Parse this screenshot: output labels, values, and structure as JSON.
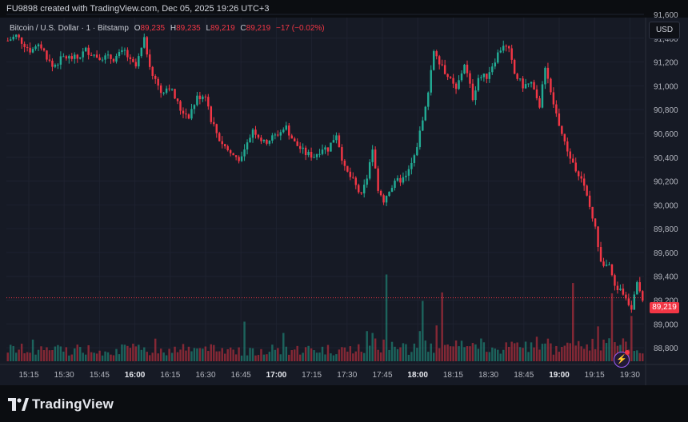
{
  "header": {
    "created_text": "FU9898 created with TradingView.com, Dec 05, 2025 19:26 UTC+3"
  },
  "legend": {
    "symbol": "Bitcoin / U.S. Dollar · 1 · Bitstamp",
    "o_label": "O",
    "o_value": "89,235",
    "h_label": "H",
    "h_value": "89,235",
    "l_label": "L",
    "l_value": "89,219",
    "c_label": "C",
    "c_value": "89,219",
    "change": "−17 (−0.02%)"
  },
  "currency_button": "USD",
  "last_price_label": "89,219",
  "footer": {
    "brand": "TradingView"
  },
  "colors": {
    "up": "#22ab94",
    "down": "#f23645",
    "background": "#161a25",
    "grid": "#1e2230"
  },
  "icons": {
    "alert": "lightning-icon"
  },
  "chart_data": {
    "type": "candlestick",
    "title": "Bitcoin / U.S. Dollar · 1 · Bitstamp",
    "ylabel": "USD",
    "ylim": [
      88700,
      91600
    ],
    "y_ticks": [
      "91,600",
      "91,400",
      "91,200",
      "91,000",
      "90,800",
      "90,600",
      "90,400",
      "90,200",
      "90,000",
      "89,800",
      "89,600",
      "89,400",
      "89,200",
      "89,000",
      "88,800"
    ],
    "x_ticks": [
      "15:15",
      "15:30",
      "15:45",
      "16:00",
      "16:15",
      "16:30",
      "16:45",
      "17:00",
      "17:15",
      "17:30",
      "17:45",
      "18:00",
      "18:15",
      "18:30",
      "18:45",
      "19:00",
      "19:15",
      "19:30"
    ],
    "bold_x_ticks": [
      "16:00",
      "17:00",
      "18:00",
      "19:00"
    ],
    "close_path": [
      [
        0,
        91380
      ],
      [
        3,
        91420
      ],
      [
        8,
        91300
      ],
      [
        12,
        91330
      ],
      [
        16,
        91160
      ],
      [
        20,
        91240
      ],
      [
        25,
        91230
      ],
      [
        28,
        91300
      ],
      [
        32,
        91250
      ],
      [
        35,
        91240
      ],
      [
        38,
        91230
      ],
      [
        42,
        91290
      ],
      [
        44,
        91200
      ],
      [
        46,
        91160
      ],
      [
        49,
        91380
      ],
      [
        52,
        91090
      ],
      [
        55,
        90950
      ],
      [
        58,
        91000
      ],
      [
        62,
        90800
      ],
      [
        65,
        90750
      ],
      [
        68,
        90900
      ],
      [
        71,
        90930
      ],
      [
        73,
        90720
      ],
      [
        76,
        90550
      ],
      [
        80,
        90430
      ],
      [
        84,
        90380
      ],
      [
        88,
        90640
      ],
      [
        92,
        90520
      ],
      [
        96,
        90580
      ],
      [
        100,
        90650
      ],
      [
        103,
        90520
      ],
      [
        107,
        90430
      ],
      [
        110,
        90410
      ],
      [
        113,
        90480
      ],
      [
        115,
        90470
      ],
      [
        118,
        90600
      ],
      [
        121,
        90300
      ],
      [
        124,
        90200
      ],
      [
        127,
        90070
      ],
      [
        129,
        90230
      ],
      [
        131,
        90450
      ],
      [
        133,
        90140
      ],
      [
        135,
        90040
      ],
      [
        137,
        90130
      ],
      [
        140,
        90200
      ],
      [
        143,
        90230
      ],
      [
        146,
        90400
      ],
      [
        150,
        90810
      ],
      [
        153,
        91300
      ],
      [
        157,
        91120
      ],
      [
        161,
        90960
      ],
      [
        164,
        91190
      ],
      [
        167,
        90900
      ],
      [
        169,
        91070
      ],
      [
        172,
        91080
      ],
      [
        176,
        91270
      ],
      [
        178,
        91350
      ],
      [
        180,
        91290
      ],
      [
        182,
        91100
      ],
      [
        185,
        91000
      ],
      [
        188,
        91020
      ],
      [
        191,
        90800
      ],
      [
        193,
        91180
      ],
      [
        195,
        90930
      ],
      [
        198,
        90680
      ],
      [
        200,
        90510
      ],
      [
        203,
        90350
      ],
      [
        206,
        90230
      ],
      [
        209,
        89980
      ],
      [
        211,
        89800
      ],
      [
        213,
        89540
      ],
      [
        216,
        89470
      ],
      [
        218,
        89320
      ],
      [
        221,
        89260
      ],
      [
        224,
        89140
      ],
      [
        226,
        89330
      ],
      [
        228,
        89219
      ]
    ],
    "volume_max": 1000,
    "volume_spikes": [
      [
        9,
        230
      ],
      [
        53,
        240
      ],
      [
        85,
        420
      ],
      [
        99,
        300
      ],
      [
        129,
        320
      ],
      [
        131,
        300
      ],
      [
        135,
        230
      ],
      [
        136,
        920
      ],
      [
        148,
        320
      ],
      [
        149,
        640
      ],
      [
        154,
        380
      ],
      [
        156,
        730
      ],
      [
        190,
        260
      ],
      [
        203,
        830
      ],
      [
        212,
        370
      ],
      [
        217,
        720
      ],
      [
        224,
        480
      ]
    ]
  }
}
